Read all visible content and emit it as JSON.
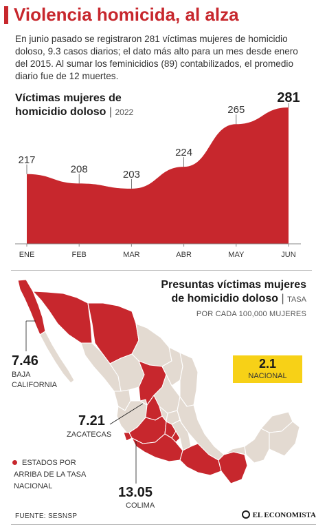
{
  "title": "Violencia homicida, al alza",
  "intro": "En junio pasado se registraron 281 víctimas mujeres de homicidio doloso, 9.3 casos diarios; el dato más alto para un mes desde enero del 2015. Al sumar los feminicidios (89) contabilizados, el promedio diario fue de 12 muertes.",
  "chart_data": [
    {
      "type": "area",
      "title_line1": "Víctimas mujeres de",
      "title_line2": "homicidio doloso",
      "subtitle": "2022",
      "categories": [
        "ENE",
        "FEB",
        "MAR",
        "ABR",
        "MAY",
        "JUN"
      ],
      "values": [
        217,
        208,
        203,
        224,
        265,
        281
      ],
      "labels": [
        "217",
        "208",
        "203",
        "224",
        "265",
        "281"
      ],
      "highlight_last": true,
      "ylim": [
        150,
        285
      ],
      "color": "#c7272d",
      "grid": false
    },
    {
      "type": "choropleth",
      "title_line1": "Presuntas víctimas mujeres",
      "title_line2": "de homicidio doloso",
      "unit_line1": "TASA",
      "unit_line2": "POR CADA 100,000 MUJERES",
      "national": {
        "value": "2.1",
        "label": "NACIONAL"
      },
      "callouts": [
        {
          "value": "7.46",
          "label_line1": "BAJA",
          "label_line2": "CALIFORNIA"
        },
        {
          "value": "7.21",
          "label_line1": "ZACATECAS",
          "label_line2": ""
        },
        {
          "value": "13.05",
          "label_line1": "COLIMA",
          "label_line2": ""
        }
      ],
      "legend": "ESTADOS POR ARRIBA DE LA TASA NACIONAL",
      "colors": {
        "above": "#c7272d",
        "below": "#e3dad1",
        "border": "#ffffff",
        "national_box": "#f7d117"
      }
    }
  ],
  "source": "FUENTE: SESNSP",
  "brand": "EL ECONOMISTA"
}
